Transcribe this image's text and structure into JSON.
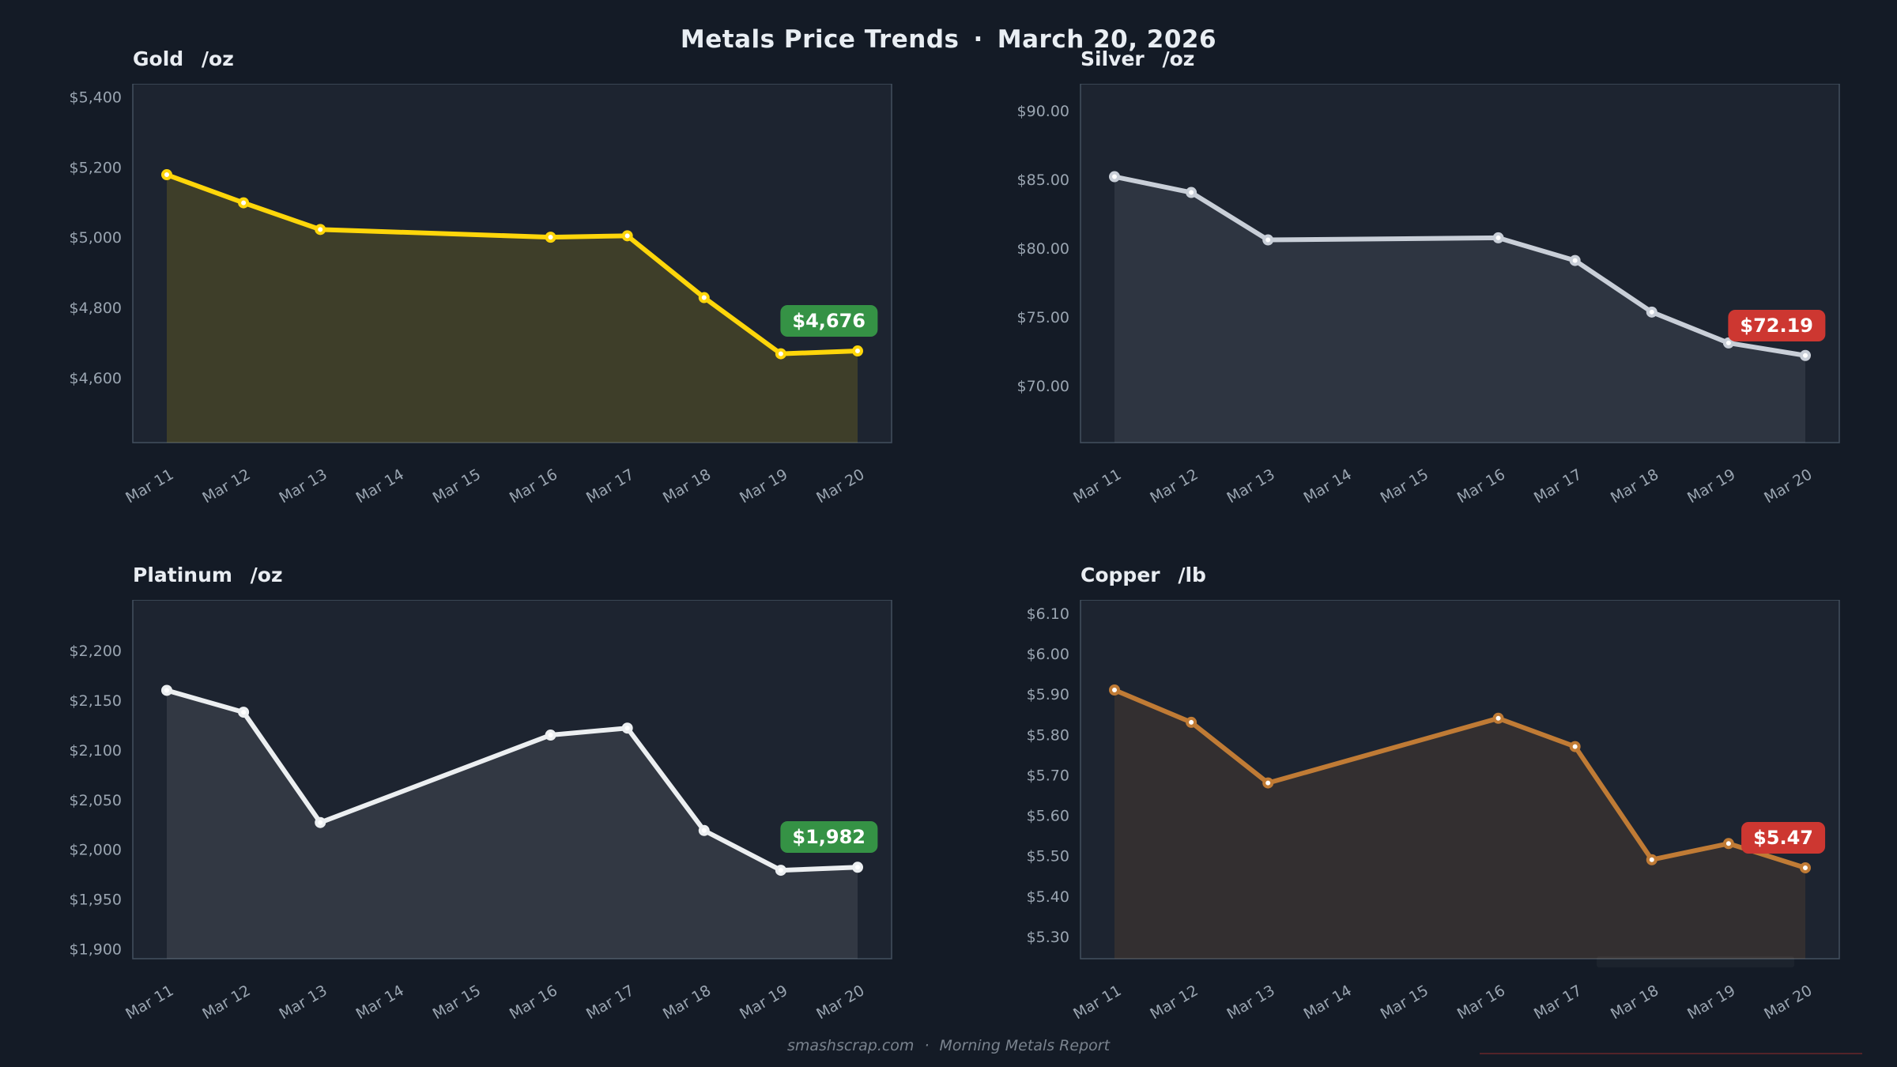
{
  "header": {
    "title": "Metals Price Trends",
    "separator": "·",
    "date": "March 20, 2026"
  },
  "footer": {
    "site": "smashscrap.com",
    "separator": "·",
    "label": "Morning Metals Report"
  },
  "colors": {
    "background": "#141b26",
    "panel": "#1d2430",
    "panel_border": "#43505f",
    "tick_text": "#9aa5b1",
    "title_text": "#e9edf2",
    "footer_text": "#7a838e",
    "badge_up": "#359245",
    "badge_down": "#cd3731"
  },
  "chart_data": [
    {
      "type": "line",
      "metal": "Gold",
      "unit": "/oz",
      "categories": [
        "Mar 11",
        "Mar 12",
        "Mar 13",
        "Mar 14",
        "Mar 15",
        "Mar 16",
        "Mar 17",
        "Mar 18",
        "Mar 19",
        "Mar 20"
      ],
      "values": [
        5178,
        5098,
        5022,
        null,
        null,
        5000,
        5004,
        4828,
        4668,
        4676
      ],
      "ylim": [
        4415,
        5437
      ],
      "yticks": [
        {
          "v": 5400,
          "label": "$5,400"
        },
        {
          "v": 5200,
          "label": "$5,200"
        },
        {
          "v": 5000,
          "label": "$5,000"
        },
        {
          "v": 4800,
          "label": "$4,800"
        },
        {
          "v": 4600,
          "label": "$4,600"
        }
      ],
      "line_color": "#ffd60a",
      "fill_color": "rgba(255,214,10,0.15)",
      "last_price_label": "$4,676",
      "badge_color": "#359245",
      "grid": false,
      "legend": false
    },
    {
      "type": "line",
      "metal": "Silver",
      "unit": "/oz",
      "categories": [
        "Mar 11",
        "Mar 12",
        "Mar 13",
        "Mar 14",
        "Mar 15",
        "Mar 16",
        "Mar 17",
        "Mar 18",
        "Mar 19",
        "Mar 20"
      ],
      "values": [
        85.2,
        84.05,
        80.6,
        null,
        null,
        80.75,
        79.1,
        75.35,
        73.1,
        72.19
      ],
      "ylim": [
        65.85,
        91.96
      ],
      "yticks": [
        {
          "v": 90,
          "label": "$90.00"
        },
        {
          "v": 85,
          "label": "$85.00"
        },
        {
          "v": 80,
          "label": "$80.00"
        },
        {
          "v": 75,
          "label": "$75.00"
        },
        {
          "v": 70,
          "label": "$70.00"
        }
      ],
      "line_color": "#c9cfd8",
      "fill_color": "rgba(201,206,214,0.10)",
      "last_price_label": "$72.19",
      "badge_color": "#cd3731",
      "grid": false,
      "legend": false
    },
    {
      "type": "line",
      "metal": "Platinum",
      "unit": "/oz",
      "categories": [
        "Mar 11",
        "Mar 12",
        "Mar 13",
        "Mar 14",
        "Mar 15",
        "Mar 16",
        "Mar 17",
        "Mar 18",
        "Mar 19",
        "Mar 20"
      ],
      "values": [
        2160,
        2138,
        2027,
        null,
        null,
        2115,
        2122,
        2019,
        1979,
        1982
      ],
      "ylim": [
        1890,
        2251
      ],
      "yticks": [
        {
          "v": 2200,
          "label": "$2,200"
        },
        {
          "v": 2150,
          "label": "$2,150"
        },
        {
          "v": 2100,
          "label": "$2,100"
        },
        {
          "v": 2050,
          "label": "$2,050"
        },
        {
          "v": 2000,
          "label": "$2,000"
        },
        {
          "v": 1950,
          "label": "$1,950"
        },
        {
          "v": 1900,
          "label": "$1,900"
        }
      ],
      "line_color": "#eceff1",
      "fill_color": "rgba(236,238,240,0.10)",
      "last_price_label": "$1,982",
      "badge_color": "#359245",
      "grid": false,
      "legend": false
    },
    {
      "type": "line",
      "metal": "Copper",
      "unit": "/lb",
      "categories": [
        "Mar 11",
        "Mar 12",
        "Mar 13",
        "Mar 14",
        "Mar 15",
        "Mar 16",
        "Mar 17",
        "Mar 18",
        "Mar 19",
        "Mar 20"
      ],
      "values": [
        5.91,
        5.83,
        5.68,
        null,
        null,
        5.84,
        5.77,
        5.49,
        5.53,
        5.47
      ],
      "ylim": [
        5.245,
        6.133
      ],
      "yticks": [
        {
          "v": 6.1,
          "label": "$6.10"
        },
        {
          "v": 6.0,
          "label": "$6.00"
        },
        {
          "v": 5.9,
          "label": "$5.90"
        },
        {
          "v": 5.8,
          "label": "$5.80"
        },
        {
          "v": 5.7,
          "label": "$5.70"
        },
        {
          "v": 5.6,
          "label": "$5.60"
        },
        {
          "v": 5.5,
          "label": "$5.50"
        },
        {
          "v": 5.4,
          "label": "$5.40"
        },
        {
          "v": 5.3,
          "label": "$5.30"
        }
      ],
      "line_color": "#c07b35",
      "fill_color": "rgba(192,123,53,0.14)",
      "last_price_label": "$5.47",
      "badge_color": "#cd3731",
      "grid": false,
      "legend": false
    }
  ]
}
